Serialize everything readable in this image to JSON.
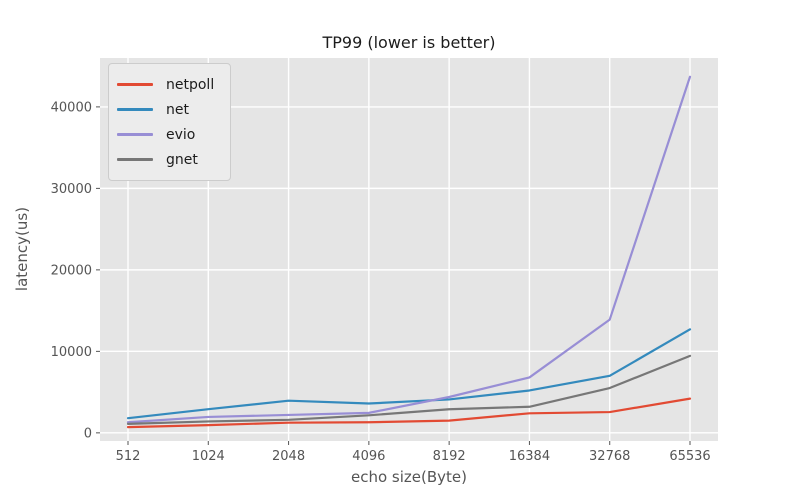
{
  "chart_data": {
    "type": "line",
    "title": "TP99 (lower is better)",
    "xlabel": "echo size(Byte)",
    "ylabel": "latency(us)",
    "categories": [
      "512",
      "1024",
      "2048",
      "4096",
      "8192",
      "16384",
      "32768",
      "65536"
    ],
    "series": [
      {
        "name": "netpoll",
        "color": "#e24a33",
        "values": [
          700,
          950,
          1250,
          1300,
          1500,
          2400,
          2550,
          4200
        ]
      },
      {
        "name": "net",
        "color": "#348abd",
        "values": [
          1800,
          2900,
          3950,
          3600,
          4100,
          5200,
          7000,
          12700
        ]
      },
      {
        "name": "evio",
        "color": "#988ed5",
        "values": [
          1300,
          1950,
          2200,
          2450,
          4400,
          6800,
          13900,
          43700
        ]
      },
      {
        "name": "gnet",
        "color": "#777777",
        "values": [
          1100,
          1400,
          1600,
          2150,
          2900,
          3200,
          5500,
          9450
        ]
      }
    ],
    "yticks": [
      0,
      10000,
      20000,
      30000,
      40000
    ],
    "ylim": [
      -1000,
      46000
    ],
    "grid": true,
    "legend_position": "upper left",
    "colors": {
      "plot_bg": "#e5e5e5",
      "grid": "#ffffff",
      "tick": "#555555",
      "tick_label": "#555555",
      "axis_label": "#555555",
      "title": "#1c1c1c",
      "legend_bg": "#ececec",
      "legend_border": "#cccccc"
    }
  }
}
